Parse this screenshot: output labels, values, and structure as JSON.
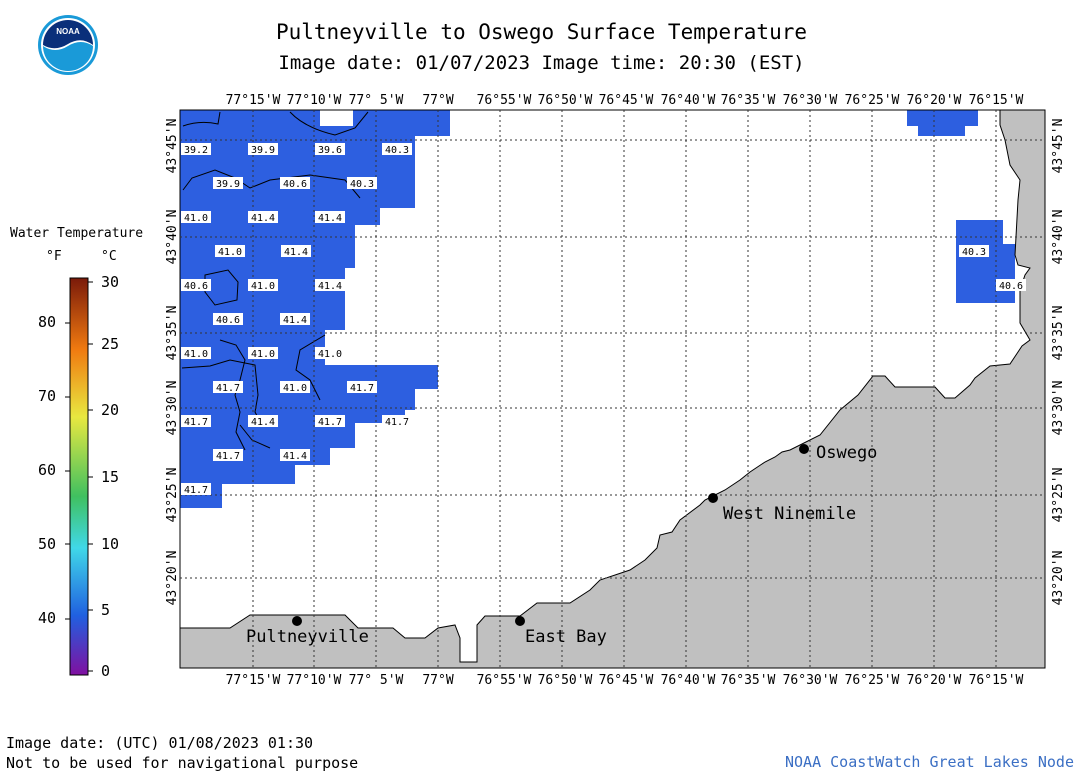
{
  "header": {
    "title": "Pultneyville to Oswego Surface Temperature",
    "subtitle": "Image date: 01/07/2023    Image time: 20:30 (EST)"
  },
  "logo": {
    "text": "NOAA",
    "icon": "noaa-logo"
  },
  "legend": {
    "title": "Water Temperature",
    "unit_f": "°F",
    "unit_c": "°C",
    "f_labels": [
      "80",
      "70",
      "60",
      "50",
      "40"
    ],
    "c_labels": [
      "30",
      "25",
      "20",
      "15",
      "10",
      "5",
      "0"
    ],
    "colors": {
      "top": "#7a1a0a",
      "orange": "#f07a10",
      "yellow": "#e8e840",
      "green": "#40c060",
      "cyan": "#40d8e8",
      "blue": "#2060e0",
      "purple": "#8010a0"
    }
  },
  "map": {
    "lon_labels": [
      "77°15'W",
      "77°10'W",
      "77° 5'W",
      "77°W",
      "76°55'W",
      "76°50'W",
      "76°45'W",
      "76°40'W",
      "76°35'W",
      "76°30'W",
      "76°25'W",
      "76°20'W",
      "76°15'W"
    ],
    "lat_labels": [
      "43°45'N",
      "43°40'N",
      "43°35'N",
      "43°30'N",
      "43°25'N",
      "43°20'N"
    ],
    "land_color": "#c0c0c0",
    "water_color": "#2d5fe0",
    "cities": [
      {
        "name": "Oswego"
      },
      {
        "name": "West Ninemile"
      },
      {
        "name": "Pultneyville"
      },
      {
        "name": "East Bay"
      }
    ],
    "temperature_labels": [
      "39.2",
      "39.9",
      "39.6",
      "40.3",
      "39.9",
      "40.6",
      "40.3",
      "41.0",
      "41.4",
      "41.4",
      "41.0",
      "41.4",
      "40.6",
      "41.0",
      "41.4",
      "40.6",
      "41.4",
      "41.0",
      "41.0",
      "41.0",
      "41.7",
      "41.0",
      "41.7",
      "41.7",
      "41.4",
      "41.7",
      "41.7",
      "41.7",
      "41.4",
      "41.7",
      "40.3",
      "40.6"
    ]
  },
  "footer": {
    "date": "Image date: (UTC) 01/08/2023  01:30",
    "note": "Not to be used for navigational purpose",
    "credit": "NOAA CoastWatch Great Lakes Node"
  }
}
